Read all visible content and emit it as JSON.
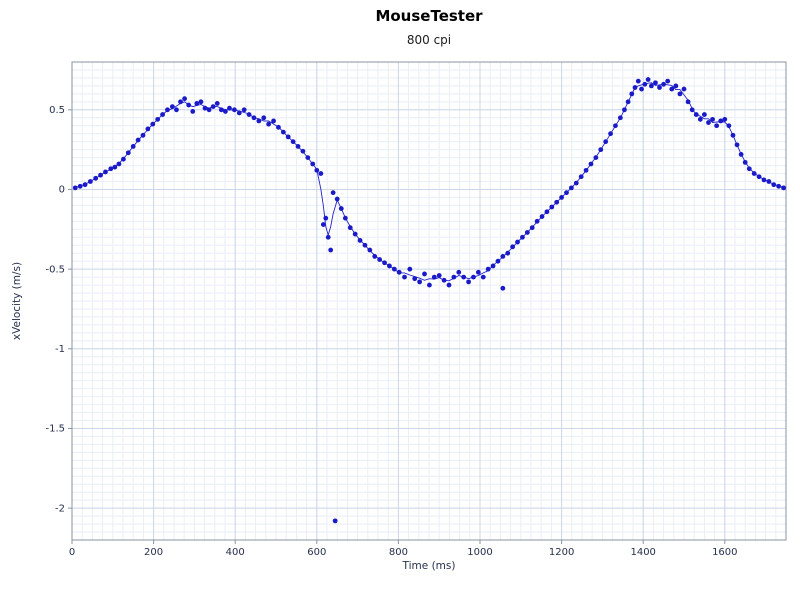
{
  "chart_data": {
    "type": "scatter",
    "title": "MouseTester",
    "subtitle": "800 cpi",
    "xlabel": "Time (ms)",
    "ylabel": "xVelocity (m/s)",
    "xlim": [
      0,
      1750
    ],
    "ylim": [
      -2.2,
      0.8
    ],
    "x_ticks": [
      0,
      200,
      400,
      600,
      800,
      1000,
      1200,
      1400,
      1600
    ],
    "y_ticks": [
      0.5,
      0,
      -0.5,
      -1,
      -1.5,
      -2
    ],
    "grid": true,
    "grid_minor_step_x": 25,
    "grid_minor_step_y": 0.05,
    "legend_position": "none",
    "colors": {
      "line": "#2323cc",
      "point": "#1a1ac8",
      "grid_minor": "#e9eef7",
      "grid_major": "#ccd7e8",
      "axis": "#8a94a2",
      "tick_text": "#26304d",
      "axis_title_text": "#26304d"
    },
    "series": [
      {
        "name": "xVelocity",
        "points": [
          [
            8,
            0.01
          ],
          [
            20,
            0.02
          ],
          [
            32,
            0.03
          ],
          [
            45,
            0.05
          ],
          [
            58,
            0.07
          ],
          [
            70,
            0.09
          ],
          [
            82,
            0.11
          ],
          [
            95,
            0.13
          ],
          [
            105,
            0.14
          ],
          [
            115,
            0.16
          ],
          [
            126,
            0.19
          ],
          [
            138,
            0.23
          ],
          [
            150,
            0.27
          ],
          [
            162,
            0.31
          ],
          [
            174,
            0.34
          ],
          [
            186,
            0.38
          ],
          [
            198,
            0.41
          ],
          [
            210,
            0.44
          ],
          [
            222,
            0.47
          ],
          [
            234,
            0.5
          ],
          [
            246,
            0.52
          ],
          [
            256,
            0.5
          ],
          [
            266,
            0.55
          ],
          [
            276,
            0.57
          ],
          [
            286,
            0.53
          ],
          [
            296,
            0.49
          ],
          [
            306,
            0.54
          ],
          [
            316,
            0.55
          ],
          [
            326,
            0.51
          ],
          [
            336,
            0.5
          ],
          [
            346,
            0.52
          ],
          [
            356,
            0.54
          ],
          [
            366,
            0.5
          ],
          [
            376,
            0.49
          ],
          [
            386,
            0.51
          ],
          [
            398,
            0.5
          ],
          [
            410,
            0.48
          ],
          [
            422,
            0.5
          ],
          [
            434,
            0.47
          ],
          [
            446,
            0.45
          ],
          [
            458,
            0.43
          ],
          [
            470,
            0.45
          ],
          [
            482,
            0.41
          ],
          [
            494,
            0.43
          ],
          [
            506,
            0.39
          ],
          [
            518,
            0.36
          ],
          [
            530,
            0.33
          ],
          [
            542,
            0.3
          ],
          [
            554,
            0.27
          ],
          [
            566,
            0.24
          ],
          [
            578,
            0.2
          ],
          [
            590,
            0.16
          ],
          [
            600,
            0.12
          ],
          [
            610,
            0.1
          ],
          [
            616,
            -0.22
          ],
          [
            622,
            -0.18
          ],
          [
            628,
            -0.3
          ],
          [
            634,
            -0.38
          ],
          [
            640,
            -0.02
          ],
          [
            650,
            -0.06
          ],
          [
            660,
            -0.12
          ],
          [
            670,
            -0.18
          ],
          [
            682,
            -0.24
          ],
          [
            694,
            -0.28
          ],
          [
            706,
            -0.32
          ],
          [
            718,
            -0.35
          ],
          [
            730,
            -0.38
          ],
          [
            742,
            -0.42
          ],
          [
            754,
            -0.44
          ],
          [
            766,
            -0.46
          ],
          [
            778,
            -0.48
          ],
          [
            790,
            -0.5
          ],
          [
            802,
            -0.52
          ],
          [
            815,
            -0.55
          ],
          [
            828,
            -0.5
          ],
          [
            840,
            -0.56
          ],
          [
            852,
            -0.58
          ],
          [
            864,
            -0.53
          ],
          [
            876,
            -0.6
          ],
          [
            888,
            -0.55
          ],
          [
            900,
            -0.54
          ],
          [
            912,
            -0.57
          ],
          [
            924,
            -0.6
          ],
          [
            936,
            -0.55
          ],
          [
            948,
            -0.52
          ],
          [
            960,
            -0.55
          ],
          [
            972,
            -0.58
          ],
          [
            984,
            -0.55
          ],
          [
            996,
            -0.52
          ],
          [
            1008,
            -0.55
          ],
          [
            1020,
            -0.5
          ],
          [
            1032,
            -0.48
          ],
          [
            1044,
            -0.45
          ],
          [
            1056,
            -0.42
          ],
          [
            1068,
            -0.4
          ],
          [
            1080,
            -0.36
          ],
          [
            1092,
            -0.33
          ],
          [
            1104,
            -0.3
          ],
          [
            1116,
            -0.27
          ],
          [
            1128,
            -0.24
          ],
          [
            1140,
            -0.2
          ],
          [
            1152,
            -0.17
          ],
          [
            1164,
            -0.14
          ],
          [
            1176,
            -0.11
          ],
          [
            1188,
            -0.08
          ],
          [
            1200,
            -0.05
          ],
          [
            1212,
            -0.02
          ],
          [
            1224,
            0.01
          ],
          [
            1236,
            0.04
          ],
          [
            1248,
            0.08
          ],
          [
            1260,
            0.12
          ],
          [
            1272,
            0.16
          ],
          [
            1284,
            0.2
          ],
          [
            1296,
            0.25
          ],
          [
            1308,
            0.3
          ],
          [
            1320,
            0.35
          ],
          [
            1332,
            0.4
          ],
          [
            1344,
            0.45
          ],
          [
            1354,
            0.5
          ],
          [
            1363,
            0.55
          ],
          [
            1372,
            0.6
          ],
          [
            1380,
            0.64
          ],
          [
            1388,
            0.68
          ],
          [
            1396,
            0.63
          ],
          [
            1404,
            0.66
          ],
          [
            1412,
            0.69
          ],
          [
            1420,
            0.65
          ],
          [
            1430,
            0.67
          ],
          [
            1440,
            0.64
          ],
          [
            1450,
            0.66
          ],
          [
            1460,
            0.68
          ],
          [
            1470,
            0.63
          ],
          [
            1480,
            0.65
          ],
          [
            1490,
            0.6
          ],
          [
            1500,
            0.63
          ],
          [
            1510,
            0.55
          ],
          [
            1520,
            0.5
          ],
          [
            1530,
            0.47
          ],
          [
            1540,
            0.44
          ],
          [
            1550,
            0.47
          ],
          [
            1560,
            0.42
          ],
          [
            1570,
            0.44
          ],
          [
            1580,
            0.4
          ],
          [
            1590,
            0.43
          ],
          [
            1600,
            0.44
          ],
          [
            1610,
            0.4
          ],
          [
            1620,
            0.34
          ],
          [
            1630,
            0.28
          ],
          [
            1640,
            0.22
          ],
          [
            1650,
            0.17
          ],
          [
            1660,
            0.13
          ],
          [
            1672,
            0.1
          ],
          [
            1684,
            0.08
          ],
          [
            1696,
            0.06
          ],
          [
            1708,
            0.05
          ],
          [
            1720,
            0.03
          ],
          [
            1732,
            0.02
          ],
          [
            1744,
            0.01
          ]
        ]
      }
    ],
    "outlier_points": [
      [
        645,
        -2.08
      ],
      [
        1056,
        -0.62
      ]
    ]
  }
}
